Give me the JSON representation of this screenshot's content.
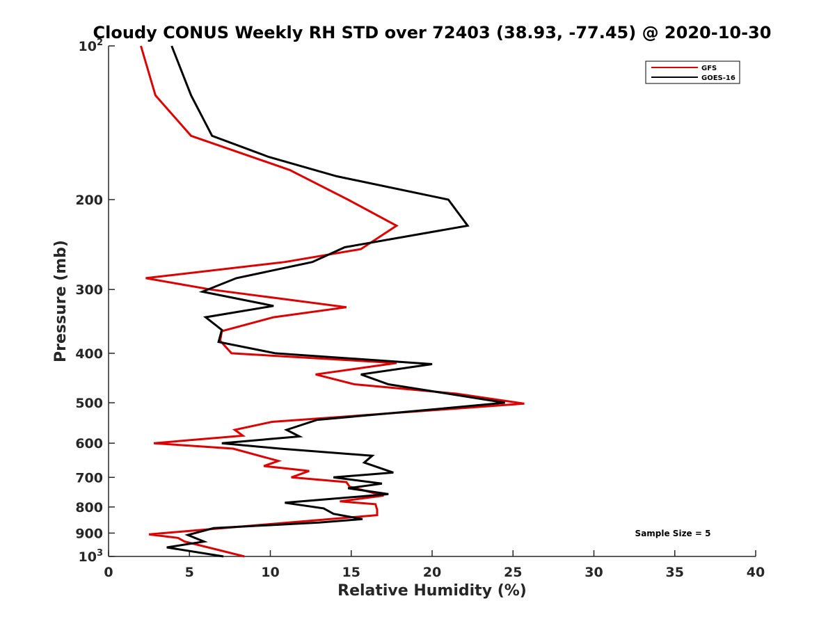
{
  "chart_data": {
    "type": "line",
    "title": "Cloudy CONUS Weekly RH STD over 72403 (38.93, -77.45) @ 2020-10-30",
    "xlabel": "Relative Humidity (%)",
    "ylabel": "Pressure (mb)",
    "xlim": [
      0,
      40
    ],
    "ylim": [
      100,
      1000
    ],
    "y_scale": "log",
    "y_reversed": true,
    "grid": false,
    "legend_position": "top-right",
    "x_ticks": [
      "0",
      "5",
      "10",
      "15",
      "20",
      "25",
      "30",
      "35",
      "40"
    ],
    "y_ticks": [
      {
        "value": 100,
        "base": "10",
        "exp": "2"
      },
      {
        "value": 200,
        "label": "200"
      },
      {
        "value": 300,
        "label": "300"
      },
      {
        "value": 400,
        "label": "400"
      },
      {
        "value": 500,
        "label": "500"
      },
      {
        "value": 600,
        "label": "600"
      },
      {
        "value": 700,
        "label": "700"
      },
      {
        "value": 800,
        "label": "800"
      },
      {
        "value": 900,
        "label": "900"
      },
      {
        "value": 1000,
        "base": "10",
        "exp": "3"
      }
    ],
    "annotation": "Sample Size = 5",
    "series": [
      {
        "name": "GFS",
        "color": "#dd0000",
        "points": [
          {
            "x": 2.0,
            "y": 100
          },
          {
            "x": 2.9,
            "y": 125
          },
          {
            "x": 5.1,
            "y": 150
          },
          {
            "x": 11.2,
            "y": 175
          },
          {
            "x": 14.8,
            "y": 200
          },
          {
            "x": 17.8,
            "y": 225
          },
          {
            "x": 15.6,
            "y": 250
          },
          {
            "x": 10.9,
            "y": 265
          },
          {
            "x": 2.3,
            "y": 285
          },
          {
            "x": 6.3,
            "y": 300
          },
          {
            "x": 14.7,
            "y": 325
          },
          {
            "x": 10.2,
            "y": 340
          },
          {
            "x": 7.0,
            "y": 362
          },
          {
            "x": 6.9,
            "y": 378
          },
          {
            "x": 7.6,
            "y": 400
          },
          {
            "x": 17.8,
            "y": 418
          },
          {
            "x": 12.8,
            "y": 440
          },
          {
            "x": 15.2,
            "y": 460
          },
          {
            "x": 21.5,
            "y": 480
          },
          {
            "x": 25.7,
            "y": 502
          },
          {
            "x": 10.1,
            "y": 545
          },
          {
            "x": 7.8,
            "y": 565
          },
          {
            "x": 8.3,
            "y": 580
          },
          {
            "x": 2.8,
            "y": 600
          },
          {
            "x": 7.7,
            "y": 615
          },
          {
            "x": 10.5,
            "y": 650
          },
          {
            "x": 9.6,
            "y": 665
          },
          {
            "x": 12.4,
            "y": 680
          },
          {
            "x": 11.3,
            "y": 700
          },
          {
            "x": 14.7,
            "y": 715
          },
          {
            "x": 14.9,
            "y": 730
          },
          {
            "x": 17.0,
            "y": 760
          },
          {
            "x": 14.3,
            "y": 780
          },
          {
            "x": 16.5,
            "y": 790
          },
          {
            "x": 16.6,
            "y": 810
          },
          {
            "x": 16.6,
            "y": 830
          },
          {
            "x": 2.5,
            "y": 905
          },
          {
            "x": 4.3,
            "y": 920
          },
          {
            "x": 4.7,
            "y": 935
          },
          {
            "x": 8.4,
            "y": 1000
          }
        ]
      },
      {
        "name": "GOES-16",
        "color": "#000000",
        "points": [
          {
            "x": 3.9,
            "y": 100
          },
          {
            "x": 5.1,
            "y": 125
          },
          {
            "x": 6.4,
            "y": 150
          },
          {
            "x": 9.9,
            "y": 165
          },
          {
            "x": 14.1,
            "y": 180
          },
          {
            "x": 21.0,
            "y": 200
          },
          {
            "x": 22.2,
            "y": 225
          },
          {
            "x": 14.6,
            "y": 248
          },
          {
            "x": 12.6,
            "y": 265
          },
          {
            "x": 7.9,
            "y": 285
          },
          {
            "x": 5.8,
            "y": 303
          },
          {
            "x": 10.2,
            "y": 323
          },
          {
            "x": 6.0,
            "y": 340
          },
          {
            "x": 7.0,
            "y": 360
          },
          {
            "x": 6.8,
            "y": 380
          },
          {
            "x": 10.3,
            "y": 400
          },
          {
            "x": 20.0,
            "y": 420
          },
          {
            "x": 15.6,
            "y": 440
          },
          {
            "x": 17.3,
            "y": 460
          },
          {
            "x": 24.5,
            "y": 500
          },
          {
            "x": 20.1,
            "y": 515
          },
          {
            "x": 12.9,
            "y": 540
          },
          {
            "x": 11.0,
            "y": 565
          },
          {
            "x": 11.8,
            "y": 582
          },
          {
            "x": 7.0,
            "y": 600
          },
          {
            "x": 10.6,
            "y": 615
          },
          {
            "x": 16.3,
            "y": 635
          },
          {
            "x": 15.8,
            "y": 655
          },
          {
            "x": 17.6,
            "y": 685
          },
          {
            "x": 13.9,
            "y": 700
          },
          {
            "x": 16.9,
            "y": 720
          },
          {
            "x": 14.8,
            "y": 735
          },
          {
            "x": 17.3,
            "y": 755
          },
          {
            "x": 10.9,
            "y": 785
          },
          {
            "x": 13.3,
            "y": 805
          },
          {
            "x": 13.9,
            "y": 825
          },
          {
            "x": 15.7,
            "y": 845
          },
          {
            "x": 13.0,
            "y": 858
          },
          {
            "x": 6.5,
            "y": 880
          },
          {
            "x": 4.9,
            "y": 908
          },
          {
            "x": 5.9,
            "y": 935
          },
          {
            "x": 3.6,
            "y": 960
          },
          {
            "x": 7.1,
            "y": 1000
          }
        ]
      }
    ]
  }
}
